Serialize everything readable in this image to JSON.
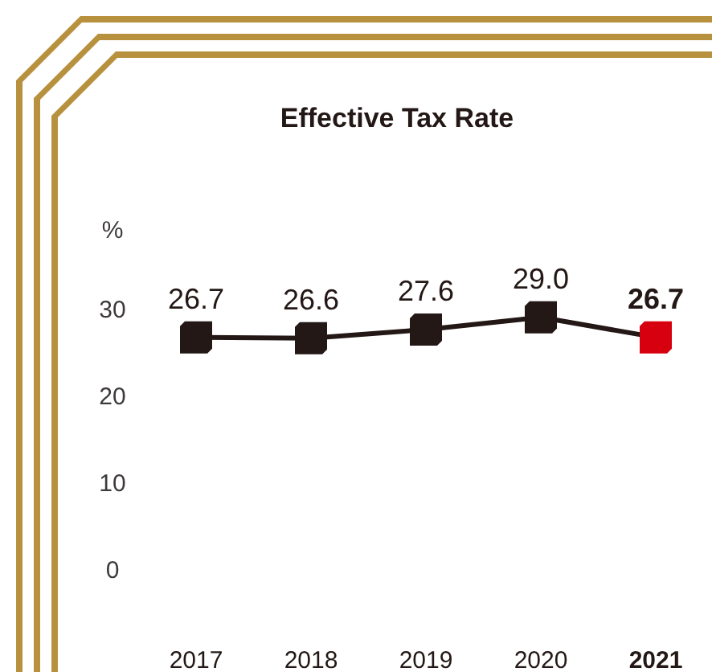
{
  "chart_data": {
    "type": "line",
    "title": "Effective Tax Rate",
    "ylabel": "%",
    "categories": [
      "2017",
      "2018",
      "2019",
      "2020",
      "2021"
    ],
    "series": [
      {
        "color": "#231815",
        "colors": [
          "#231815",
          "#231815",
          "#231815",
          "#231815",
          "#d7000f"
        ],
        "values": [
          26.7,
          26.6,
          27.6,
          29.0,
          26.7
        ]
      }
    ],
    "ylim": [
      0,
      30
    ],
    "yticks": [
      0,
      10,
      20,
      30
    ],
    "grid": false,
    "marker": "square",
    "line_style": "solid",
    "value_labels": [
      "26.7",
      "26.6",
      "27.6",
      "29.0",
      "26.7"
    ]
  }
}
